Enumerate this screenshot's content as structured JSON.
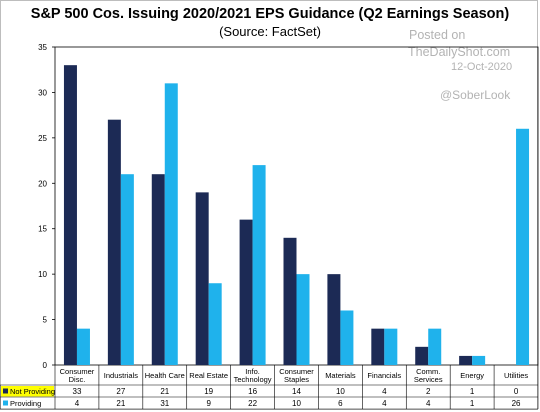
{
  "title": "S&P 500 Cos. Issuing 2020/2021 EPS Guidance (Q2 Earnings Season)",
  "subtitle": "(Source: FactSet)",
  "watermarks": {
    "posted_on": "Posted on",
    "site": "TheDailyShot.com",
    "date": "12-Oct-2020",
    "handle": "@SoberLook"
  },
  "chart_data": {
    "type": "bar",
    "categories": [
      [
        "Consumer",
        "Disc."
      ],
      [
        "Industrials"
      ],
      [
        "Health Care"
      ],
      [
        "Real Estate"
      ],
      [
        "Info.",
        "Technology"
      ],
      [
        "Consumer",
        "Staples"
      ],
      [
        "Materials"
      ],
      [
        "Financials"
      ],
      [
        "Comm.",
        "Services"
      ],
      [
        "Energy"
      ],
      [
        "Utilities"
      ]
    ],
    "series": [
      {
        "name": "Not Providing",
        "color": "#1c2a55",
        "values": [
          33,
          27,
          21,
          19,
          16,
          14,
          10,
          4,
          2,
          1,
          0
        ]
      },
      {
        "name": "Providing",
        "color": "#1fb2ec",
        "values": [
          4,
          21,
          31,
          9,
          22,
          10,
          6,
          4,
          4,
          1,
          26
        ]
      }
    ],
    "ylim": [
      0,
      35
    ],
    "yticks": [
      0,
      5,
      10,
      15,
      20,
      25,
      30,
      35
    ],
    "grid": false,
    "legend": "data-table"
  },
  "colors": {
    "not_providing_label_bg": "#ffff00",
    "providing_label_bg": "#ffffff"
  }
}
